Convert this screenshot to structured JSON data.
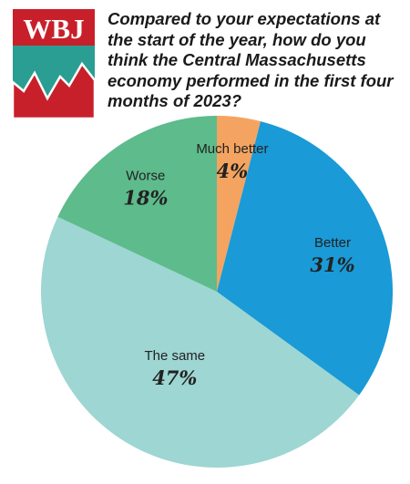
{
  "logo": {
    "text": "WBJ",
    "colors": {
      "red": "#c8202a",
      "teal": "#2a9e93",
      "white": "#ffffff"
    }
  },
  "chart_data": {
    "type": "pie",
    "title": "Compared to your expectations at the start of the year, how do you think the Central Massachusetts economy performed in the first four months of 2023?",
    "slices": [
      {
        "label": "Much better",
        "value": 4,
        "display": "4%",
        "color": "#f4a460"
      },
      {
        "label": "Better",
        "value": 31,
        "display": "31%",
        "color": "#1a9ad6"
      },
      {
        "label": "The same",
        "value": 47,
        "display": "47%",
        "color": "#9dd6d2"
      },
      {
        "label": "Worse",
        "value": 18,
        "display": "18%",
        "color": "#5dbb8c"
      }
    ]
  }
}
